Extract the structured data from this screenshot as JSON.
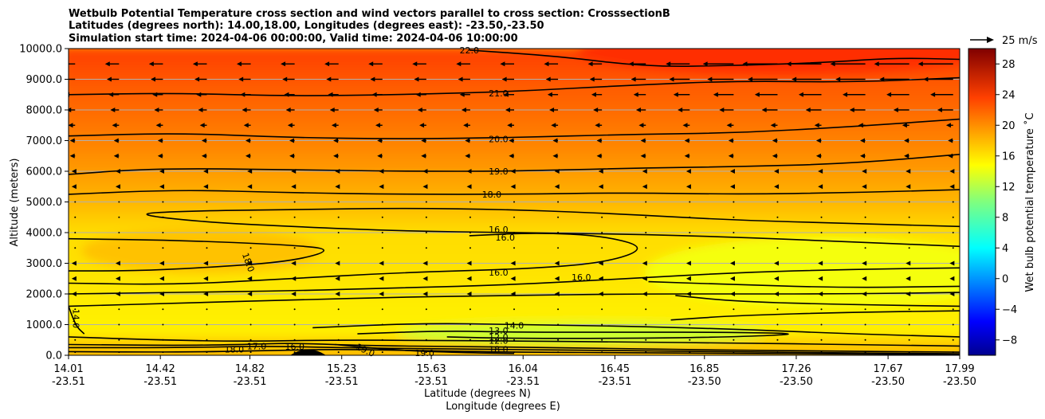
{
  "chart_data": {
    "type": "heatmap",
    "title": [
      "Wetbulb Potential Temperature cross section and wind vectors parallel to cross section: CrosssectionB",
      "Latitudes (degrees north): 14.00,18.00, Longitudes (degrees east): -23.50,-23.50",
      "Simulation start time: 2024-04-06 00:00:00, Valid time: 2024-04-06 10:00:00"
    ],
    "xlabel_primary": "Latitude (degrees N)",
    "xlabel_secondary": "Longitude (degrees E)",
    "ylabel": "Altitude (meters)",
    "xlim": [
      14.01,
      17.99
    ],
    "ylim": [
      0,
      10000
    ],
    "x_ticks": [
      {
        "lat": "14.01",
        "lon": "-23.51",
        "v": 14.01
      },
      {
        "lat": "14.42",
        "lon": "-23.51",
        "v": 14.42
      },
      {
        "lat": "14.82",
        "lon": "-23.51",
        "v": 14.82
      },
      {
        "lat": "15.23",
        "lon": "-23.51",
        "v": 15.23
      },
      {
        "lat": "15.63",
        "lon": "-23.51",
        "v": 15.63
      },
      {
        "lat": "16.04",
        "lon": "-23.51",
        "v": 16.04
      },
      {
        "lat": "16.45",
        "lon": "-23.51",
        "v": 16.45
      },
      {
        "lat": "16.85",
        "lon": "-23.50",
        "v": 16.85
      },
      {
        "lat": "17.26",
        "lon": "-23.50",
        "v": 17.26
      },
      {
        "lat": "17.67",
        "lon": "-23.50",
        "v": 17.67
      },
      {
        "lat": "17.99",
        "lon": "-23.50",
        "v": 17.99
      }
    ],
    "y_ticks": [
      {
        "label": "0.0",
        "v": 0
      },
      {
        "label": "1000.0",
        "v": 1000
      },
      {
        "label": "2000.0",
        "v": 2000
      },
      {
        "label": "3000.0",
        "v": 3000
      },
      {
        "label": "4000.0",
        "v": 4000
      },
      {
        "label": "5000.0",
        "v": 5000
      },
      {
        "label": "6000.0",
        "v": 6000
      },
      {
        "label": "7000.0",
        "v": 7000
      },
      {
        "label": "8000.0",
        "v": 8000
      },
      {
        "label": "9000.0",
        "v": 9000
      },
      {
        "label": "10000.0",
        "v": 10000
      }
    ],
    "grid": true,
    "colorbar": {
      "label": "Wet bulb potential temperature ˚C",
      "range": [
        -10,
        30
      ],
      "ticks": [
        {
          "label": "−8",
          "v": -8
        },
        {
          "label": "−4",
          "v": -4
        },
        {
          "label": "0",
          "v": 0
        },
        {
          "label": "4",
          "v": 4
        },
        {
          "label": "8",
          "v": 8
        },
        {
          "label": "12",
          "v": 12
        },
        {
          "label": "16",
          "v": 16
        },
        {
          "label": "20",
          "v": 20
        },
        {
          "label": "24",
          "v": 24
        },
        {
          "label": "28",
          "v": 28
        }
      ]
    },
    "wind_key": {
      "label": "25 m/s",
      "speed": 25
    },
    "temperature_profile": [
      {
        "z": 0,
        "t": 17.0
      },
      {
        "z": 300,
        "t": 17.5
      },
      {
        "z": 800,
        "t": 15.5
      },
      {
        "z": 2000,
        "t": 15.8
      },
      {
        "z": 3000,
        "t": 16.2
      },
      {
        "z": 4000,
        "t": 16.3
      },
      {
        "z": 5000,
        "t": 17.8
      },
      {
        "z": 6000,
        "t": 18.9
      },
      {
        "z": 7000,
        "t": 19.9
      },
      {
        "z": 8000,
        "t": 20.8
      },
      {
        "z": 9000,
        "t": 21.6
      },
      {
        "z": 10000,
        "t": 22.6
      }
    ],
    "contours": [
      {
        "level": 22.0,
        "label": "22.0",
        "pts": [
          [
            15.8,
            9950
          ],
          [
            16.2,
            9750
          ],
          [
            16.6,
            9400
          ],
          [
            17.0,
            9450
          ],
          [
            17.4,
            9550
          ],
          [
            17.7,
            9700
          ],
          [
            17.99,
            9650
          ]
        ]
      },
      {
        "level": 21.0,
        "label": "21.0",
        "pts": [
          [
            14.01,
            8500
          ],
          [
            14.5,
            8550
          ],
          [
            15.0,
            8450
          ],
          [
            15.5,
            8500
          ],
          [
            16.0,
            8600
          ],
          [
            16.5,
            8800
          ],
          [
            17.0,
            8950
          ],
          [
            17.5,
            8900
          ],
          [
            17.99,
            9050
          ]
        ]
      },
      {
        "level": 20.0,
        "label": "20.0",
        "pts": [
          [
            14.01,
            7150
          ],
          [
            14.5,
            7250
          ],
          [
            15.0,
            7100
          ],
          [
            15.5,
            7050
          ],
          [
            16.0,
            7100
          ],
          [
            16.5,
            7200
          ],
          [
            17.0,
            7250
          ],
          [
            17.5,
            7450
          ],
          [
            17.99,
            7700
          ]
        ]
      },
      {
        "level": 19.0,
        "label": "19.0",
        "pts": [
          [
            14.01,
            5900
          ],
          [
            14.4,
            6100
          ],
          [
            15.0,
            6050
          ],
          [
            15.5,
            6000
          ],
          [
            16.0,
            6000
          ],
          [
            16.5,
            6100
          ],
          [
            17.0,
            6150
          ],
          [
            17.5,
            6250
          ],
          [
            17.99,
            6550
          ]
        ]
      },
      {
        "level": 18.0,
        "label": "18.0",
        "pts": [
          [
            14.01,
            5250
          ],
          [
            14.5,
            5400
          ],
          [
            15.0,
            5300
          ],
          [
            15.5,
            5250
          ],
          [
            16.0,
            5250
          ],
          [
            16.5,
            5300
          ],
          [
            17.0,
            5250
          ],
          [
            17.5,
            5300
          ],
          [
            17.99,
            5400
          ]
        ]
      },
      {
        "level": 17.0,
        "label": "",
        "pts": [
          [
            17.99,
            4200
          ],
          [
            17.5,
            4300
          ],
          [
            17.0,
            4400
          ],
          [
            16.5,
            4600
          ],
          [
            16.0,
            4750
          ],
          [
            15.5,
            4800
          ],
          [
            15.0,
            4750
          ],
          [
            14.5,
            4700
          ],
          [
            14.3,
            4600
          ],
          [
            14.6,
            4350
          ],
          [
            15.0,
            4200
          ],
          [
            15.5,
            4050
          ],
          [
            16.0,
            4000
          ],
          [
            16.5,
            3950
          ],
          [
            17.0,
            3850
          ],
          [
            17.5,
            3700
          ],
          [
            17.99,
            3550
          ]
        ]
      },
      {
        "level": 18.0,
        "label": "18.0",
        "pts": [
          [
            14.01,
            3800
          ],
          [
            14.5,
            3750
          ],
          [
            15.0,
            3600
          ],
          [
            15.2,
            3450
          ],
          [
            15.0,
            3050
          ],
          [
            14.6,
            2850
          ],
          [
            14.3,
            2750
          ],
          [
            14.01,
            2750
          ]
        ]
      },
      {
        "level": 16.0,
        "label": "16.0",
        "pts": [
          [
            15.8,
            3900
          ],
          [
            16.1,
            4000
          ],
          [
            16.4,
            3900
          ],
          [
            16.6,
            3500
          ],
          [
            16.4,
            3000
          ],
          [
            16.0,
            2800
          ],
          [
            15.5,
            2700
          ],
          [
            15.0,
            2500
          ],
          [
            14.5,
            2300
          ],
          [
            14.01,
            2350
          ]
        ]
      },
      {
        "level": 16.5,
        "label": "",
        "pts": [
          [
            14.01,
            2000
          ],
          [
            14.5,
            2050
          ],
          [
            15.0,
            2100
          ],
          [
            15.5,
            2200
          ],
          [
            16.0,
            2300
          ],
          [
            16.5,
            2500
          ],
          [
            17.0,
            2700
          ],
          [
            17.5,
            2800
          ],
          [
            17.99,
            2850
          ]
        ]
      },
      {
        "level": 16.0,
        "label": "16.0",
        "pts": [
          [
            16.6,
            2400
          ],
          [
            17.0,
            2300
          ],
          [
            17.5,
            2200
          ],
          [
            17.99,
            2250
          ]
        ]
      },
      {
        "level": 15.5,
        "label": "",
        "pts": [
          [
            14.01,
            1600
          ],
          [
            14.5,
            1700
          ],
          [
            15.0,
            1800
          ],
          [
            15.5,
            1900
          ],
          [
            16.0,
            1950
          ],
          [
            16.5,
            2000
          ],
          [
            17.0,
            2000
          ],
          [
            17.5,
            2000
          ],
          [
            17.99,
            2050
          ]
        ]
      },
      {
        "level": 15.8,
        "label": "",
        "pts": [
          [
            16.72,
            1950
          ],
          [
            17.0,
            1750
          ],
          [
            17.5,
            1650
          ],
          [
            17.99,
            1600
          ]
        ]
      },
      {
        "level": 15.7,
        "label": "",
        "pts": [
          [
            16.7,
            1150
          ],
          [
            17.0,
            1300
          ],
          [
            17.5,
            1400
          ],
          [
            17.99,
            1450
          ]
        ]
      },
      {
        "level": 14.0,
        "label": "14.0",
        "pts": [
          [
            15.1,
            900
          ],
          [
            15.6,
            1050
          ],
          [
            16.0,
            1000
          ],
          [
            16.5,
            950
          ],
          [
            17.0,
            850
          ],
          [
            17.5,
            700
          ],
          [
            17.99,
            600
          ]
        ]
      },
      {
        "level": 13.0,
        "label": "13.0",
        "pts": [
          [
            15.3,
            700
          ],
          [
            15.7,
            800
          ],
          [
            16.0,
            750
          ],
          [
            16.5,
            750
          ],
          [
            17.0,
            750
          ],
          [
            17.3,
            700
          ],
          [
            17.0,
            600
          ],
          [
            16.5,
            550
          ],
          [
            16.0,
            550
          ],
          [
            15.7,
            600
          ]
        ]
      },
      {
        "level": 15.0,
        "label": "",
        "pts": [
          [
            14.01,
            600
          ],
          [
            14.4,
            500
          ],
          [
            14.8,
            450
          ],
          [
            15.2,
            500
          ],
          [
            15.6,
            480
          ],
          [
            16.0,
            470
          ],
          [
            16.5,
            430
          ],
          [
            17.0,
            400
          ],
          [
            17.5,
            350
          ],
          [
            17.99,
            300
          ]
        ]
      },
      {
        "level": 17.0,
        "label": "17.0",
        "pts": [
          [
            14.01,
            350
          ],
          [
            14.5,
            320
          ],
          [
            14.8,
            350
          ],
          [
            15.0,
            400
          ],
          [
            15.3,
            320
          ],
          [
            15.8,
            280
          ],
          [
            16.2,
            250
          ],
          [
            16.6,
            200
          ],
          [
            17.2,
            150
          ],
          [
            17.99,
            100
          ]
        ]
      },
      {
        "level": 16.0,
        "label": "16.0",
        "pts": [
          [
            14.01,
            250
          ],
          [
            14.5,
            250
          ],
          [
            14.9,
            300
          ],
          [
            15.2,
            250
          ],
          [
            15.7,
            200
          ],
          [
            16.2,
            180
          ],
          [
            16.8,
            120
          ],
          [
            17.5,
            80
          ],
          [
            17.99,
            50
          ]
        ]
      },
      {
        "level": 18.0,
        "label": "18.0",
        "pts": [
          [
            14.01,
            120
          ],
          [
            14.5,
            100
          ],
          [
            14.9,
            150
          ],
          [
            15.2,
            200
          ],
          [
            15.6,
            150
          ],
          [
            16.0,
            100
          ],
          [
            16.6,
            80
          ],
          [
            17.4,
            40
          ],
          [
            17.99,
            30
          ]
        ]
      },
      {
        "level": 19.0,
        "label": "19.0",
        "pts": [
          [
            15.2,
            350
          ],
          [
            15.5,
            150
          ],
          [
            15.8,
            80
          ],
          [
            16.0,
            60
          ]
        ]
      },
      {
        "level": 14.0,
        "label": "14.0",
        "pts": [
          [
            14.01,
            1600
          ],
          [
            14.03,
            1200
          ],
          [
            14.05,
            900
          ],
          [
            14.08,
            700
          ]
        ]
      }
    ],
    "contour_labels": [
      {
        "text": "22.0",
        "x": 15.8,
        "z": 9950
      },
      {
        "text": "21.0",
        "x": 15.93,
        "z": 8550
      },
      {
        "text": "20.0",
        "x": 15.93,
        "z": 7050
      },
      {
        "text": "19.0",
        "x": 15.93,
        "z": 6000
      },
      {
        "text": "18.0",
        "x": 15.9,
        "z": 5250
      },
      {
        "text": "16.0",
        "x": 15.93,
        "z": 4100
      },
      {
        "text": "16.0",
        "x": 15.96,
        "z": 3850
      },
      {
        "text": "18.0",
        "x": 14.8,
        "z": 3100
      },
      {
        "text": "16.0",
        "x": 15.93,
        "z": 2700
      },
      {
        "text": "16.0",
        "x": 16.3,
        "z": 2550
      },
      {
        "text": "14.0",
        "x": 16.0,
        "z": 980
      },
      {
        "text": "13.0",
        "x": 15.93,
        "z": 800
      },
      {
        "text": "12.0",
        "x": 15.93,
        "z": 600
      },
      {
        "text": "12.0",
        "x": 15.93,
        "z": 480
      },
      {
        "text": "17.0",
        "x": 14.85,
        "z": 300
      },
      {
        "text": "16.0",
        "x": 15.02,
        "z": 280
      },
      {
        "text": "18.0",
        "x": 14.75,
        "z": 200
      },
      {
        "text": "19.0",
        "x": 15.33,
        "z": 180
      },
      {
        "text": "18.0",
        "x": 15.93,
        "z": 200
      },
      {
        "text": "19.0",
        "x": 15.6,
        "z": 80
      },
      {
        "text": "14.0",
        "x": 14.03,
        "z": 1300
      }
    ],
    "wind_vectors": {
      "x_columns": 21,
      "z_levels": [
        100,
        500,
        1000,
        1500,
        2000,
        2500,
        3000,
        3500,
        4000,
        4500,
        5000,
        5500,
        6000,
        6500,
        7000,
        7500,
        8000,
        8500,
        9000,
        9500
      ],
      "u_by_level": [
        -1,
        -1,
        -1,
        -1,
        -2,
        -2,
        -2,
        -1,
        -1,
        -1,
        -1,
        -2,
        -2,
        -3,
        -3,
        -4,
        -5,
        -6,
        -7,
        -8
      ],
      "u_east_boost": [
        0,
        0,
        0,
        0,
        0,
        0,
        0,
        0,
        0,
        0,
        0,
        0,
        0,
        0,
        0,
        0,
        4,
        7,
        10,
        12
      ],
      "note": "u in m/s (negative = toward lower latitude); east_boost applied to columns beyond 16.5N"
    }
  }
}
